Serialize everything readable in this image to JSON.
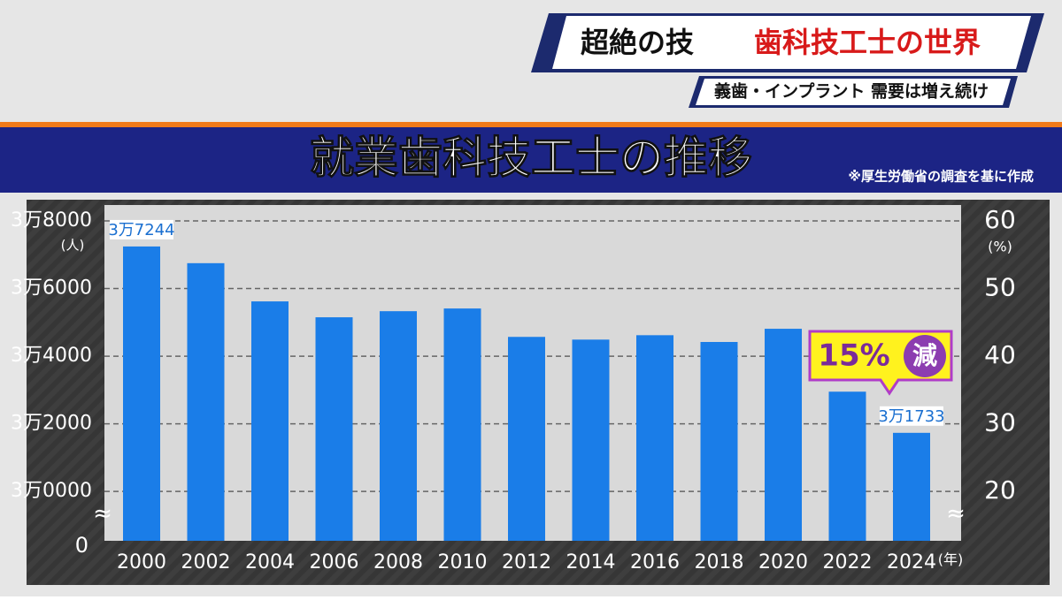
{
  "banner": {
    "lead": "超絶の技",
    "title": "歯科技工士の世界",
    "subtitle": "義歯・インプラント 需要は増え続け"
  },
  "chart_data": {
    "type": "bar",
    "title": "就業歯科技工士の推移",
    "source": "※厚生労働省の調査を基に作成",
    "categories": [
      "2000",
      "2002",
      "2004",
      "2006",
      "2008",
      "2010",
      "2012",
      "2014",
      "2016",
      "2018",
      "2020",
      "2022",
      "2024"
    ],
    "values": [
      37244,
      36750,
      35620,
      35150,
      35330,
      35410,
      34570,
      34490,
      34620,
      34420,
      34810,
      32950,
      31733
    ],
    "value_labels": [
      "3万7244",
      null,
      null,
      null,
      null,
      null,
      null,
      null,
      null,
      null,
      null,
      null,
      "3万1733"
    ],
    "color": "#1a7de8",
    "ylim": [
      28540,
      38000
    ],
    "yticks": [
      {
        "value": 30000,
        "label": "3万0000"
      },
      {
        "value": 32000,
        "label": "3万2000"
      },
      {
        "value": 34000,
        "label": "3万4000"
      },
      {
        "value": 36000,
        "label": "3万6000"
      },
      {
        "value": 38000,
        "label": "3万8000"
      }
    ],
    "y_unit": "(人)",
    "axis_origin_label": 0,
    "y2lim": [
      12.7,
      60
    ],
    "y2ticks": [
      20,
      30,
      40,
      50,
      60
    ],
    "y2_unit": "(%)",
    "x_unit": "(年)",
    "grid": true,
    "annotation": {
      "text": "15%",
      "badge": "減"
    }
  }
}
